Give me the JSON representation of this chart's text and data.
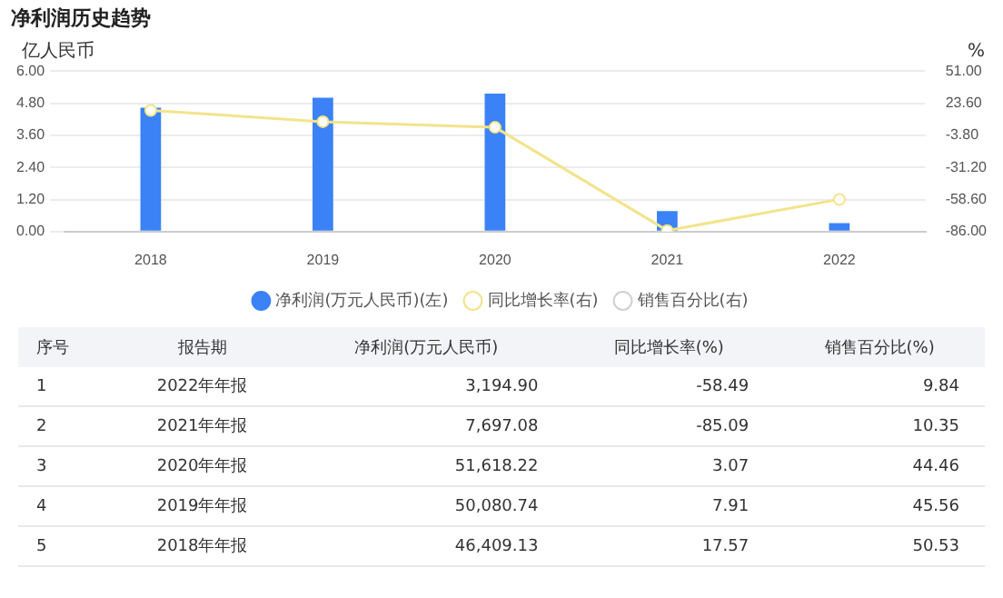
{
  "chart_data": [
    {
      "type": "bar",
      "title": "净利润历史趋势",
      "ylabel": "亿人民币",
      "y2label": "%",
      "categories": [
        "2018",
        "2019",
        "2020",
        "2021",
        "2022"
      ],
      "series": [
        {
          "name": "净利润(万元人民币)(左)",
          "color": "#3b82f6",
          "values": [
            4.64,
            5.01,
            5.16,
            0.77,
            0.32
          ]
        },
        {
          "name": "同比增长率(右)",
          "type": "line",
          "axis": "y2",
          "color": "#f3e38b",
          "values": [
            17.57,
            7.91,
            3.07,
            -85.09,
            -58.49
          ]
        },
        {
          "name": "销售百分比(右)",
          "type": "line",
          "axis": "y2",
          "color": "#d0d0d0",
          "values": [
            null,
            null,
            null,
            null,
            null
          ]
        }
      ],
      "ylim": [
        0,
        6
      ],
      "yticks": [
        {
          "value": 0,
          "label": "0.00"
        },
        {
          "value": 1.2,
          "label": "1.20"
        },
        {
          "value": 2.4,
          "label": "2.40"
        },
        {
          "value": 3.6,
          "label": "3.60"
        },
        {
          "value": 4.8,
          "label": "4.80"
        },
        {
          "value": 6,
          "label": "6.00"
        }
      ],
      "y2lim": [
        -86,
        51
      ],
      "y2ticks": [
        {
          "value": -86,
          "label": "-86.00"
        },
        {
          "value": -58.6,
          "label": "-58.60"
        },
        {
          "value": -31.2,
          "label": "-31.20"
        },
        {
          "value": -3.8,
          "label": "-3.80"
        },
        {
          "value": 23.6,
          "label": "23.60"
        },
        {
          "value": 51,
          "label": "51.00"
        }
      ],
      "grid": "y",
      "legend": "bottom",
      "marker": "circle"
    },
    {
      "type": "heatmap",
      "ylabel": "报告期",
      "y2label": "序号",
      "y_categories": [
        "2022年年报",
        "2021年年报",
        "2020年年报",
        "2019年年报",
        "2018年年报"
      ],
      "y2_categories": [
        "1",
        "2",
        "3",
        "4",
        "5"
      ],
      "categories": [
        "净利润(万元人民币)",
        "同比增长率(%)",
        "销售百分比(%)"
      ],
      "cells": [
        [
          3194.9,
          -58.49,
          9.84
        ],
        [
          7697.08,
          -85.09,
          10.35
        ],
        [
          51618.22,
          3.07,
          44.46
        ],
        [
          50080.74,
          7.91,
          45.56
        ],
        [
          46409.13,
          17.57,
          50.53
        ]
      ],
      "cell_labels": [
        [
          "3,194.90",
          "-58.49",
          "9.84"
        ],
        [
          "7,697.08",
          "-85.09",
          "10.35"
        ],
        [
          "51,618.22",
          "3.07",
          "44.46"
        ],
        [
          "50,080.74",
          "7.91",
          "45.56"
        ],
        [
          "46,409.13",
          "17.57",
          "50.53"
        ]
      ]
    }
  ]
}
